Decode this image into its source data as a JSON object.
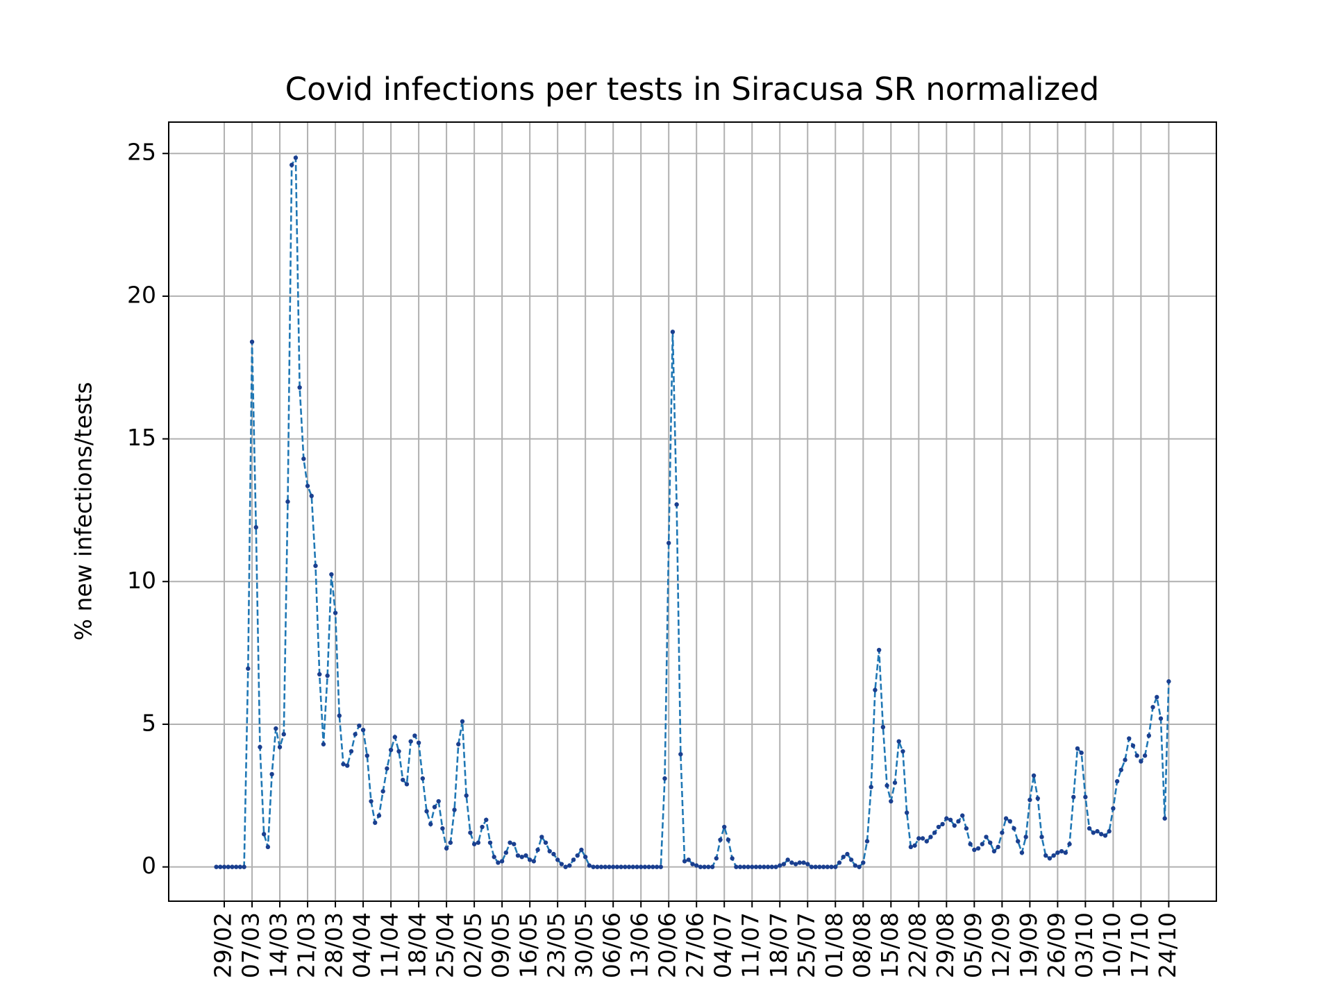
{
  "chart_data": {
    "type": "line",
    "title": "Covid infections per tests in Siracusa SR normalized",
    "ylabel": "% new infections/tests",
    "color": "#1f77b4",
    "marker_color": "#1a3f8f",
    "grid": true,
    "x": [
      "27/02",
      "28/02",
      "29/02",
      "01/03",
      "02/03",
      "03/03",
      "04/03",
      "05/03",
      "06/03",
      "07/03",
      "08/03",
      "09/03",
      "10/03",
      "11/03",
      "12/03",
      "13/03",
      "14/03",
      "15/03",
      "16/03",
      "17/03",
      "18/03",
      "19/03",
      "20/03",
      "21/03",
      "22/03",
      "23/03",
      "24/03",
      "25/03",
      "26/03",
      "27/03",
      "28/03",
      "29/03",
      "30/03",
      "31/03",
      "01/04",
      "02/04",
      "03/04",
      "04/04",
      "05/04",
      "06/04",
      "07/04",
      "08/04",
      "09/04",
      "10/04",
      "11/04",
      "12/04",
      "13/04",
      "14/04",
      "15/04",
      "16/04",
      "17/04",
      "18/04",
      "19/04",
      "20/04",
      "21/04",
      "22/04",
      "23/04",
      "24/04",
      "25/04",
      "26/04",
      "27/04",
      "28/04",
      "29/04",
      "30/04",
      "01/05",
      "02/05",
      "03/05",
      "04/05",
      "05/05",
      "06/05",
      "07/05",
      "08/05",
      "09/05",
      "10/05",
      "11/05",
      "12/05",
      "13/05",
      "14/05",
      "15/05",
      "16/05",
      "17/05",
      "18/05",
      "19/05",
      "20/05",
      "21/05",
      "22/05",
      "23/05",
      "24/05",
      "25/05",
      "26/05",
      "27/05",
      "28/05",
      "29/05",
      "30/05",
      "31/05",
      "01/06",
      "02/06",
      "03/06",
      "04/06",
      "05/06",
      "06/06",
      "07/06",
      "08/06",
      "09/06",
      "10/06",
      "11/06",
      "12/06",
      "13/06",
      "14/06",
      "15/06",
      "16/06",
      "17/06",
      "18/06",
      "19/06",
      "20/06",
      "21/06",
      "22/06",
      "23/06",
      "24/06",
      "25/06",
      "26/06",
      "27/06",
      "28/06",
      "29/06",
      "30/06",
      "01/07",
      "02/07",
      "03/07",
      "04/07",
      "05/07",
      "06/07",
      "07/07",
      "08/07",
      "09/07",
      "10/07",
      "11/07",
      "12/07",
      "13/07",
      "14/07",
      "15/07",
      "16/07",
      "17/07",
      "18/07",
      "19/07",
      "20/07",
      "21/07",
      "22/07",
      "23/07",
      "24/07",
      "25/07",
      "26/07",
      "27/07",
      "28/07",
      "29/07",
      "30/07",
      "31/07",
      "01/08",
      "02/08",
      "03/08",
      "04/08",
      "05/08",
      "06/08",
      "07/08",
      "08/08",
      "09/08",
      "10/08",
      "11/08",
      "12/08",
      "13/08",
      "14/08",
      "15/08",
      "16/08",
      "17/08",
      "18/08",
      "19/08",
      "20/08",
      "21/08",
      "22/08",
      "23/08",
      "24/08",
      "25/08",
      "26/08",
      "27/08",
      "28/08",
      "29/08",
      "30/08",
      "31/08",
      "01/09",
      "02/09",
      "03/09",
      "04/09",
      "05/09",
      "06/09",
      "07/09",
      "08/09",
      "09/09",
      "10/09",
      "11/09",
      "12/09",
      "13/09",
      "14/09",
      "15/09",
      "16/09",
      "17/09",
      "18/09",
      "19/09",
      "20/09",
      "21/09",
      "22/09",
      "23/09",
      "24/09",
      "25/09",
      "26/09",
      "27/09",
      "28/09",
      "29/09",
      "30/09",
      "01/10",
      "02/10",
      "03/10",
      "04/10",
      "05/10",
      "06/10",
      "07/10",
      "08/10",
      "09/10",
      "10/10",
      "11/10",
      "12/10",
      "13/10",
      "14/10",
      "15/10",
      "16/10",
      "17/10",
      "18/10",
      "19/10",
      "20/10",
      "21/10",
      "22/10",
      "23/10",
      "24/10"
    ],
    "values": [
      0,
      0,
      0,
      0,
      0,
      0,
      0,
      0,
      6.95,
      18.4,
      11.9,
      4.2,
      1.15,
      0.7,
      3.25,
      4.85,
      4.2,
      4.65,
      12.8,
      24.6,
      24.85,
      16.8,
      14.3,
      13.35,
      13.0,
      10.55,
      6.75,
      4.3,
      6.7,
      10.25,
      8.9,
      5.3,
      3.6,
      3.55,
      4.05,
      4.65,
      4.95,
      4.8,
      3.9,
      2.3,
      1.55,
      1.8,
      2.65,
      3.45,
      4.1,
      4.55,
      4.05,
      3.05,
      2.9,
      4.4,
      4.6,
      4.35,
      3.1,
      1.95,
      1.5,
      2.1,
      2.3,
      1.35,
      0.65,
      0.85,
      2.0,
      4.3,
      5.1,
      2.5,
      1.2,
      0.8,
      0.85,
      1.4,
      1.65,
      0.85,
      0.35,
      0.15,
      0.2,
      0.5,
      0.85,
      0.8,
      0.4,
      0.35,
      0.4,
      0.25,
      0.2,
      0.6,
      1.05,
      0.85,
      0.55,
      0.45,
      0.25,
      0.1,
      0,
      0.05,
      0.25,
      0.4,
      0.6,
      0.35,
      0.05,
      0,
      0,
      0,
      0,
      0,
      0,
      0,
      0,
      0,
      0,
      0,
      0,
      0,
      0,
      0,
      0,
      0,
      0,
      3.1,
      11.35,
      18.75,
      12.7,
      3.95,
      0.2,
      0.25,
      0.1,
      0.05,
      0,
      0,
      0,
      0,
      0.3,
      0.95,
      1.4,
      0.95,
      0.3,
      0,
      0,
      0,
      0,
      0,
      0,
      0,
      0,
      0,
      0,
      0,
      0.05,
      0.1,
      0.25,
      0.15,
      0.1,
      0.15,
      0.15,
      0.1,
      0,
      0,
      0,
      0,
      0,
      0,
      0,
      0.15,
      0.35,
      0.45,
      0.25,
      0.05,
      0,
      0.15,
      0.9,
      2.8,
      6.2,
      7.6,
      4.9,
      2.85,
      2.3,
      2.95,
      4.4,
      4.05,
      1.9,
      0.7,
      0.75,
      1.0,
      1.0,
      0.9,
      1.05,
      1.2,
      1.4,
      1.5,
      1.7,
      1.65,
      1.45,
      1.6,
      1.8,
      1.35,
      0.8,
      0.6,
      0.65,
      0.8,
      1.05,
      0.85,
      0.55,
      0.7,
      1.2,
      1.7,
      1.6,
      1.35,
      0.9,
      0.5,
      1.05,
      2.35,
      3.2,
      2.4,
      1.05,
      0.4,
      0.3,
      0.4,
      0.5,
      0.55,
      0.5,
      0.8,
      2.45,
      4.15,
      4.0,
      2.45,
      1.35,
      1.2,
      1.25,
      1.15,
      1.1,
      1.25,
      2.05,
      3.0,
      3.4,
      3.75,
      4.5,
      4.25,
      3.9,
      3.7,
      3.9,
      4.6,
      5.6,
      5.95,
      5.2,
      1.7,
      6.5
    ],
    "xticks": [
      "29/02",
      "07/03",
      "14/03",
      "21/03",
      "28/03",
      "04/04",
      "11/04",
      "18/04",
      "25/04",
      "02/05",
      "09/05",
      "16/05",
      "23/05",
      "30/05",
      "06/06",
      "13/06",
      "20/06",
      "27/06",
      "04/07",
      "11/07",
      "18/07",
      "25/07",
      "01/08",
      "08/08",
      "15/08",
      "22/08",
      "29/08",
      "05/09",
      "12/09",
      "19/09",
      "26/09",
      "03/10",
      "10/10",
      "17/10",
      "24/10"
    ],
    "ylim": [
      -1.2,
      26.1
    ],
    "yticks": [
      0,
      5,
      10,
      15,
      20,
      25
    ]
  }
}
